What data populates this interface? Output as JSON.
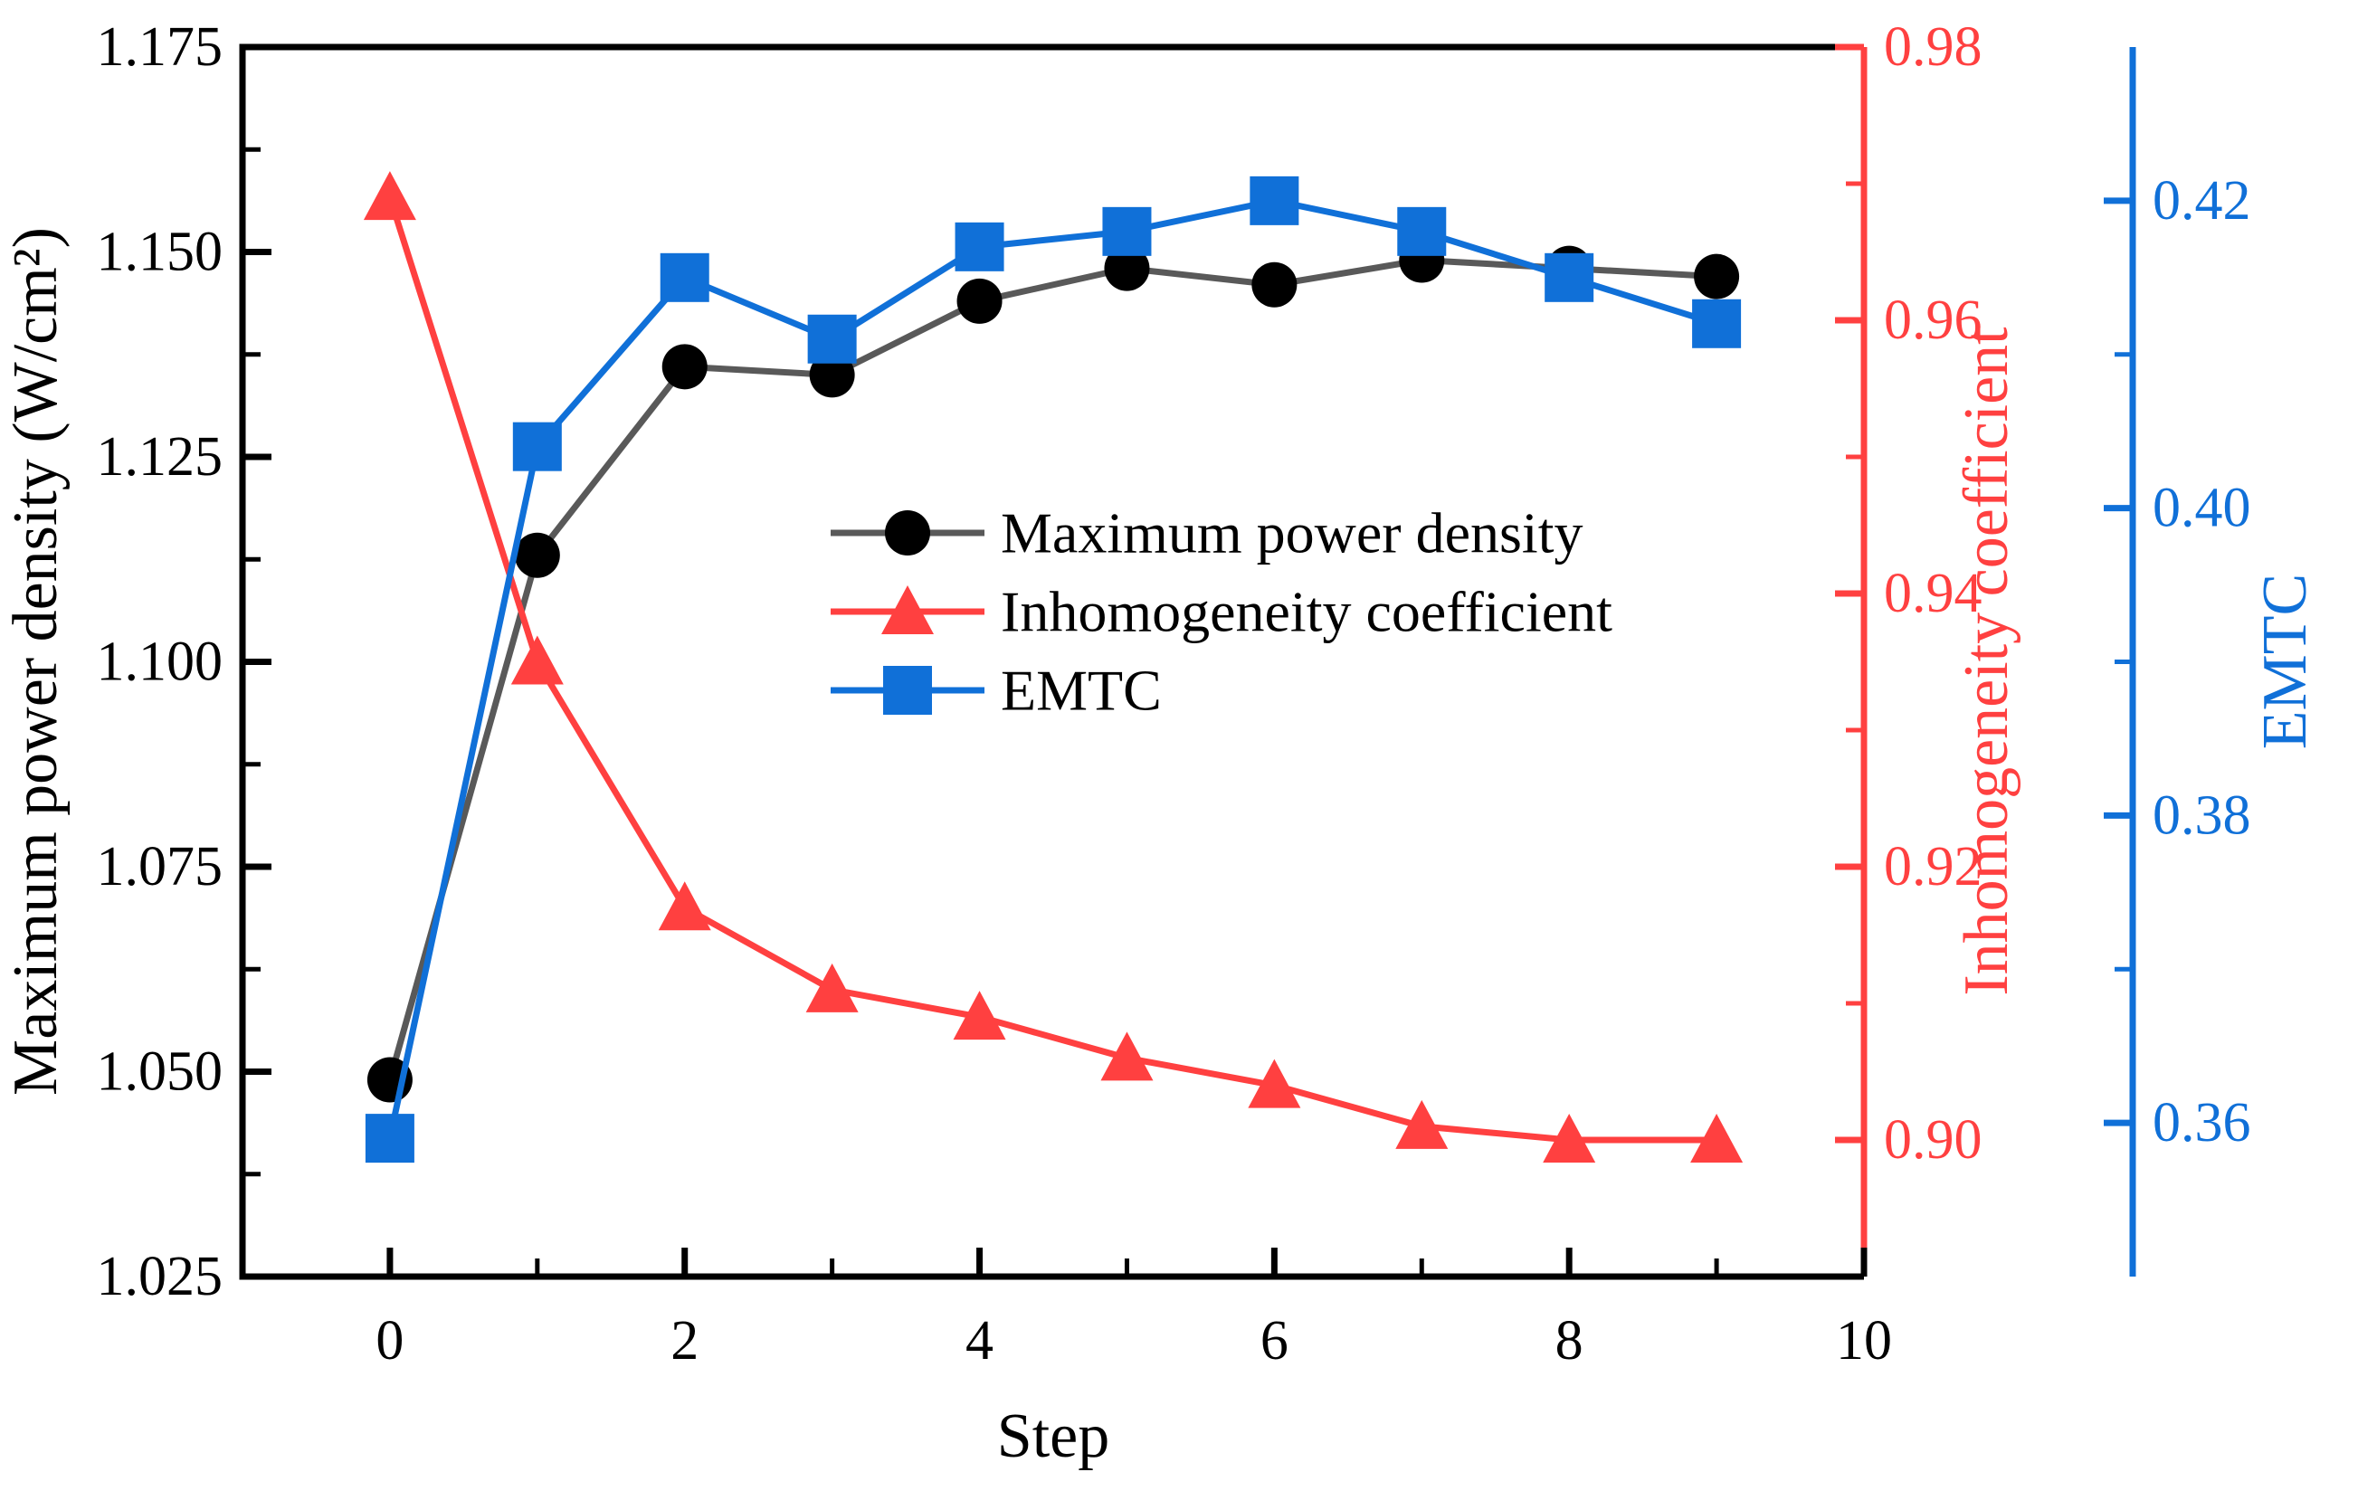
{
  "chart_data": {
    "type": "line",
    "title": "",
    "grid": false,
    "x": [
      0,
      1,
      2,
      3,
      4,
      5,
      6,
      7,
      8,
      9
    ],
    "series": [
      {
        "name": "Maximum power density",
        "axis": "left",
        "marker": "circle",
        "line_color": "#595959",
        "marker_color": "#000000",
        "values": [
          1.049,
          1.113,
          1.136,
          1.135,
          1.144,
          1.148,
          1.146,
          1.149,
          1.148,
          1.147
        ]
      },
      {
        "name": "Inhomogeneity coefficient",
        "axis": "right1",
        "marker": "triangle-up",
        "line_color": "#FF4040",
        "marker_color": "#FF4040",
        "values": [
          0.969,
          0.935,
          0.917,
          0.911,
          0.909,
          0.906,
          0.904,
          0.901,
          0.9,
          0.9
        ]
      },
      {
        "name": "EMTC",
        "axis": "right2",
        "marker": "square",
        "line_color": "#1070D8",
        "marker_color": "#1070D8",
        "values": [
          0.359,
          0.404,
          0.415,
          0.411,
          0.417,
          0.418,
          0.42,
          0.418,
          0.415,
          0.412
        ]
      }
    ],
    "x_axis": {
      "label": "Step",
      "min": -1,
      "max": 10,
      "major_ticks": [
        0,
        2,
        4,
        6,
        8,
        10
      ],
      "tick_labels": [
        "0",
        "2",
        "4",
        "6",
        "8",
        "10"
      ],
      "minor_ticks": [
        1,
        3,
        5,
        7,
        9
      ],
      "color": "#000000"
    },
    "left_axis": {
      "label": "Maximum power density (W/cm²)",
      "min": 1.025,
      "max": 1.175,
      "major_ticks": [
        1.175,
        1.15,
        1.125,
        1.1,
        1.075,
        1.05,
        1.025
      ],
      "tick_labels": [
        "1.175",
        "1.150",
        "1.125",
        "1.100",
        "1.075",
        "1.050",
        "1.025"
      ],
      "minor_ticks": [
        1.1625,
        1.1375,
        1.1125,
        1.0875,
        1.0625,
        1.0375
      ],
      "color": "#000000"
    },
    "right_axis_1": {
      "label": "Inhomogeneity coefficient",
      "min": 0.89,
      "max": 0.98,
      "major_ticks": [
        0.98,
        0.96,
        0.94,
        0.92,
        0.9
      ],
      "tick_labels": [
        "0.98",
        "0.96",
        "0.94",
        "0.92",
        "0.90"
      ],
      "minor_ticks": [
        0.97,
        0.95,
        0.93,
        0.91
      ],
      "color": "#FF4040"
    },
    "right_axis_2": {
      "label": "EMTC",
      "min": 0.35,
      "max": 0.43,
      "major_ticks": [
        0.42,
        0.4,
        0.38,
        0.36
      ],
      "tick_labels": [
        "0.42",
        "0.40",
        "0.38",
        "0.36"
      ],
      "minor_ticks": [
        0.41,
        0.39,
        0.37
      ],
      "color": "#1070D8"
    },
    "legend": {
      "frame": false,
      "position": "inside-center-left",
      "entries": [
        {
          "label": "Maximum power density",
          "line_color": "#595959",
          "marker": "circle",
          "marker_color": "#000000"
        },
        {
          "label": "Inhomogeneity coefficient",
          "line_color": "#FF4040",
          "marker": "triangle-up",
          "marker_color": "#FF4040"
        },
        {
          "label": "EMTC",
          "line_color": "#1070D8",
          "marker": "square",
          "marker_color": "#1070D8"
        }
      ]
    }
  }
}
